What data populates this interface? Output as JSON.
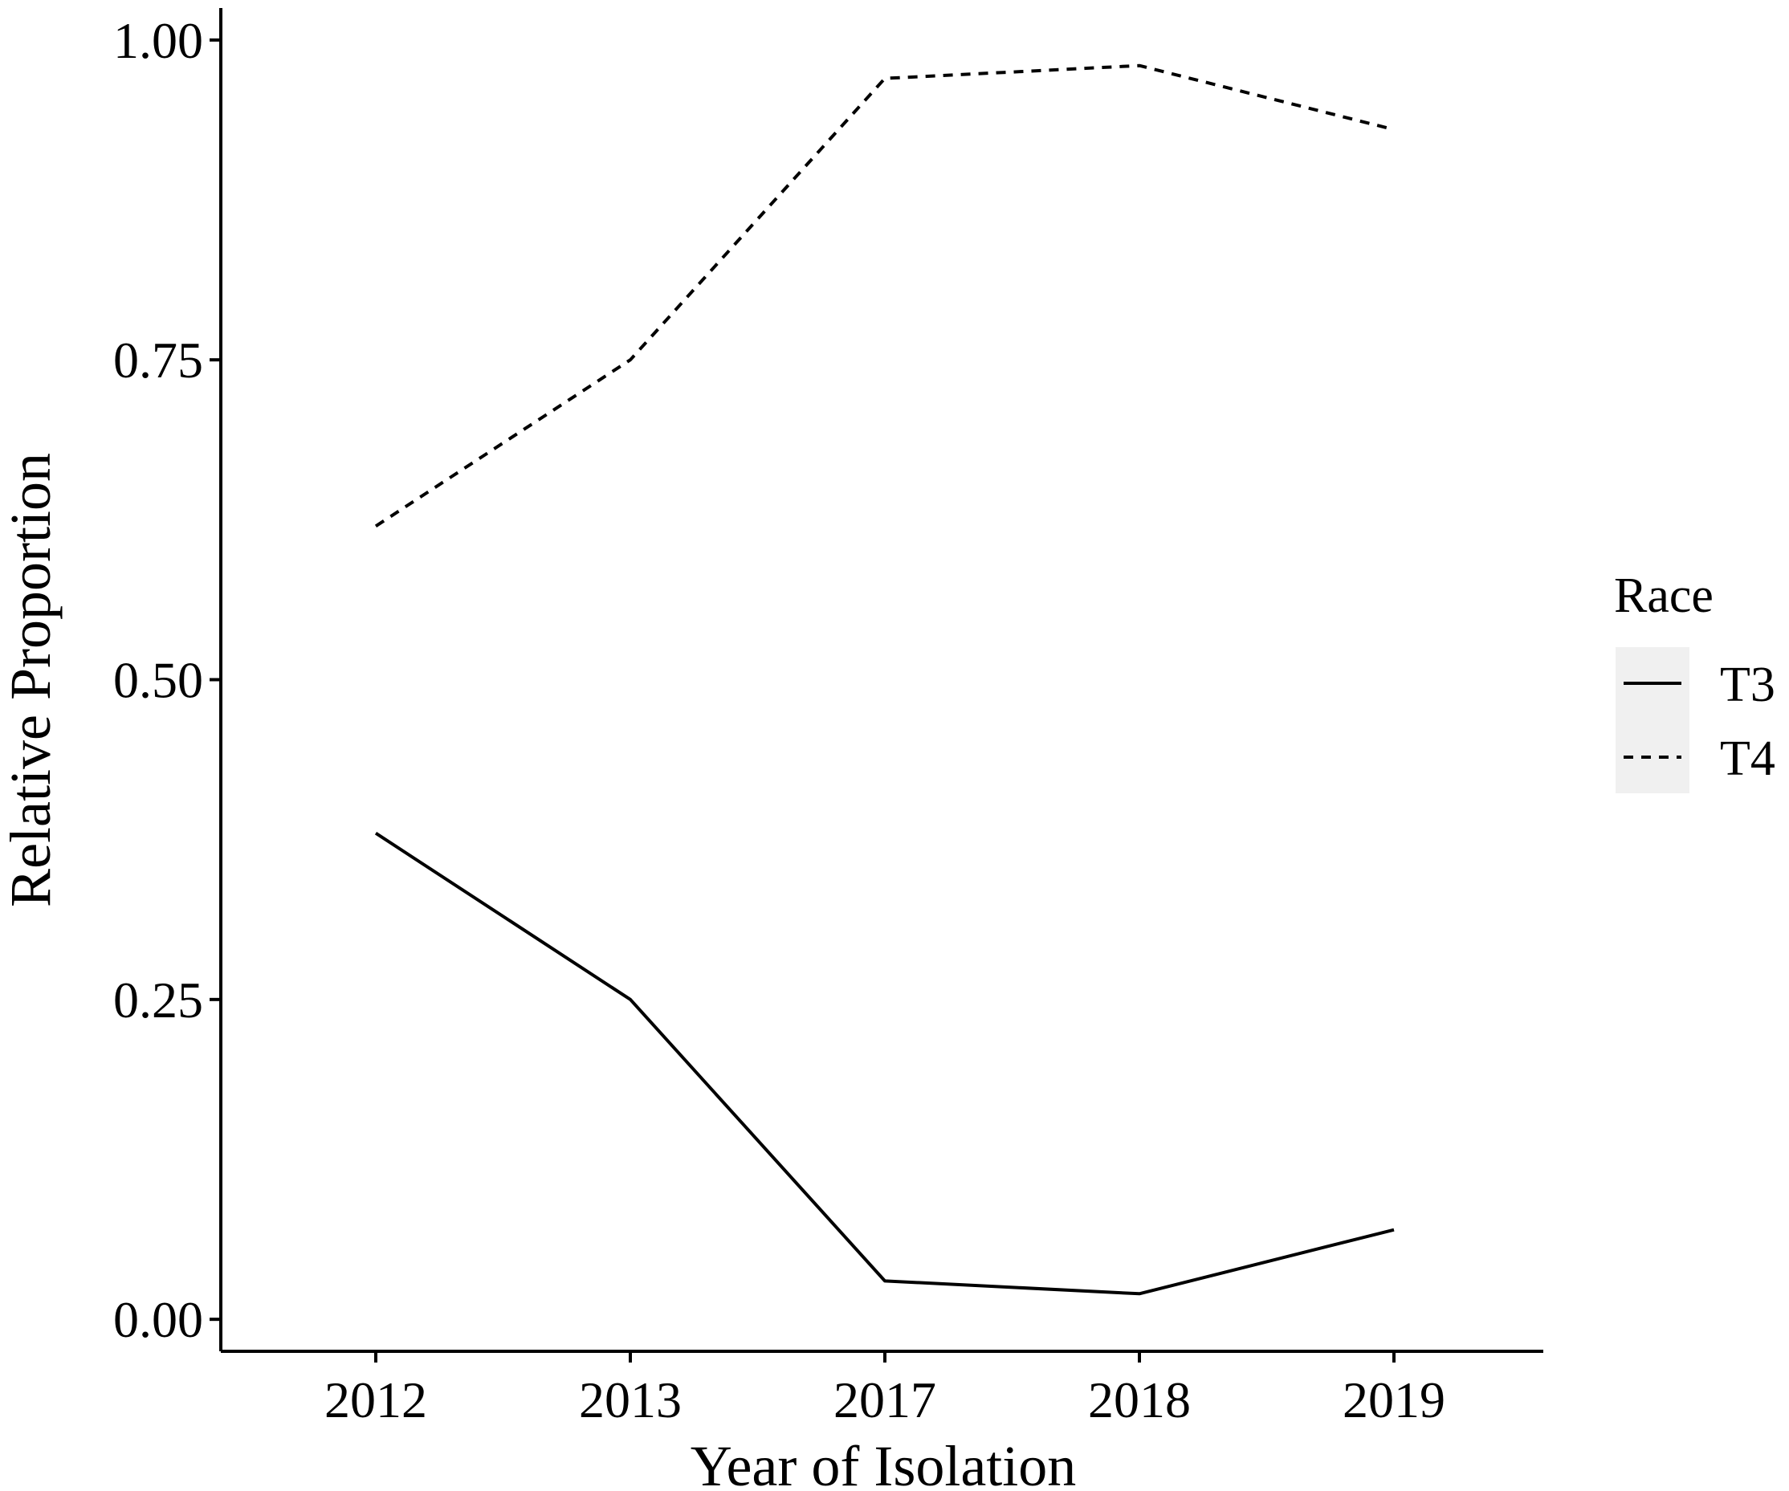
{
  "chart_data": {
    "type": "line",
    "title": "",
    "xlabel": "Year of Isolation",
    "ylabel": "Relative Proportion",
    "categories": [
      "2012",
      "2013",
      "2017",
      "2018",
      "2019"
    ],
    "y_ticks": [
      "0.00",
      "0.25",
      "0.50",
      "0.75",
      "1.00"
    ],
    "y_tick_values": [
      0,
      0.25,
      0.5,
      0.75,
      1.0
    ],
    "ylim": [
      -0.025,
      1.025
    ],
    "grid": false,
    "legend": {
      "title": "Race",
      "position": "right",
      "background": "#f0f0f0"
    },
    "series": [
      {
        "name": "T3",
        "linestyle": "solid",
        "color": "#000000",
        "values": [
          0.38,
          0.25,
          0.03,
          0.02,
          0.07
        ]
      },
      {
        "name": "T4",
        "linestyle": "dashed",
        "color": "#000000",
        "values": [
          0.62,
          0.75,
          0.97,
          0.98,
          0.93
        ]
      }
    ]
  }
}
